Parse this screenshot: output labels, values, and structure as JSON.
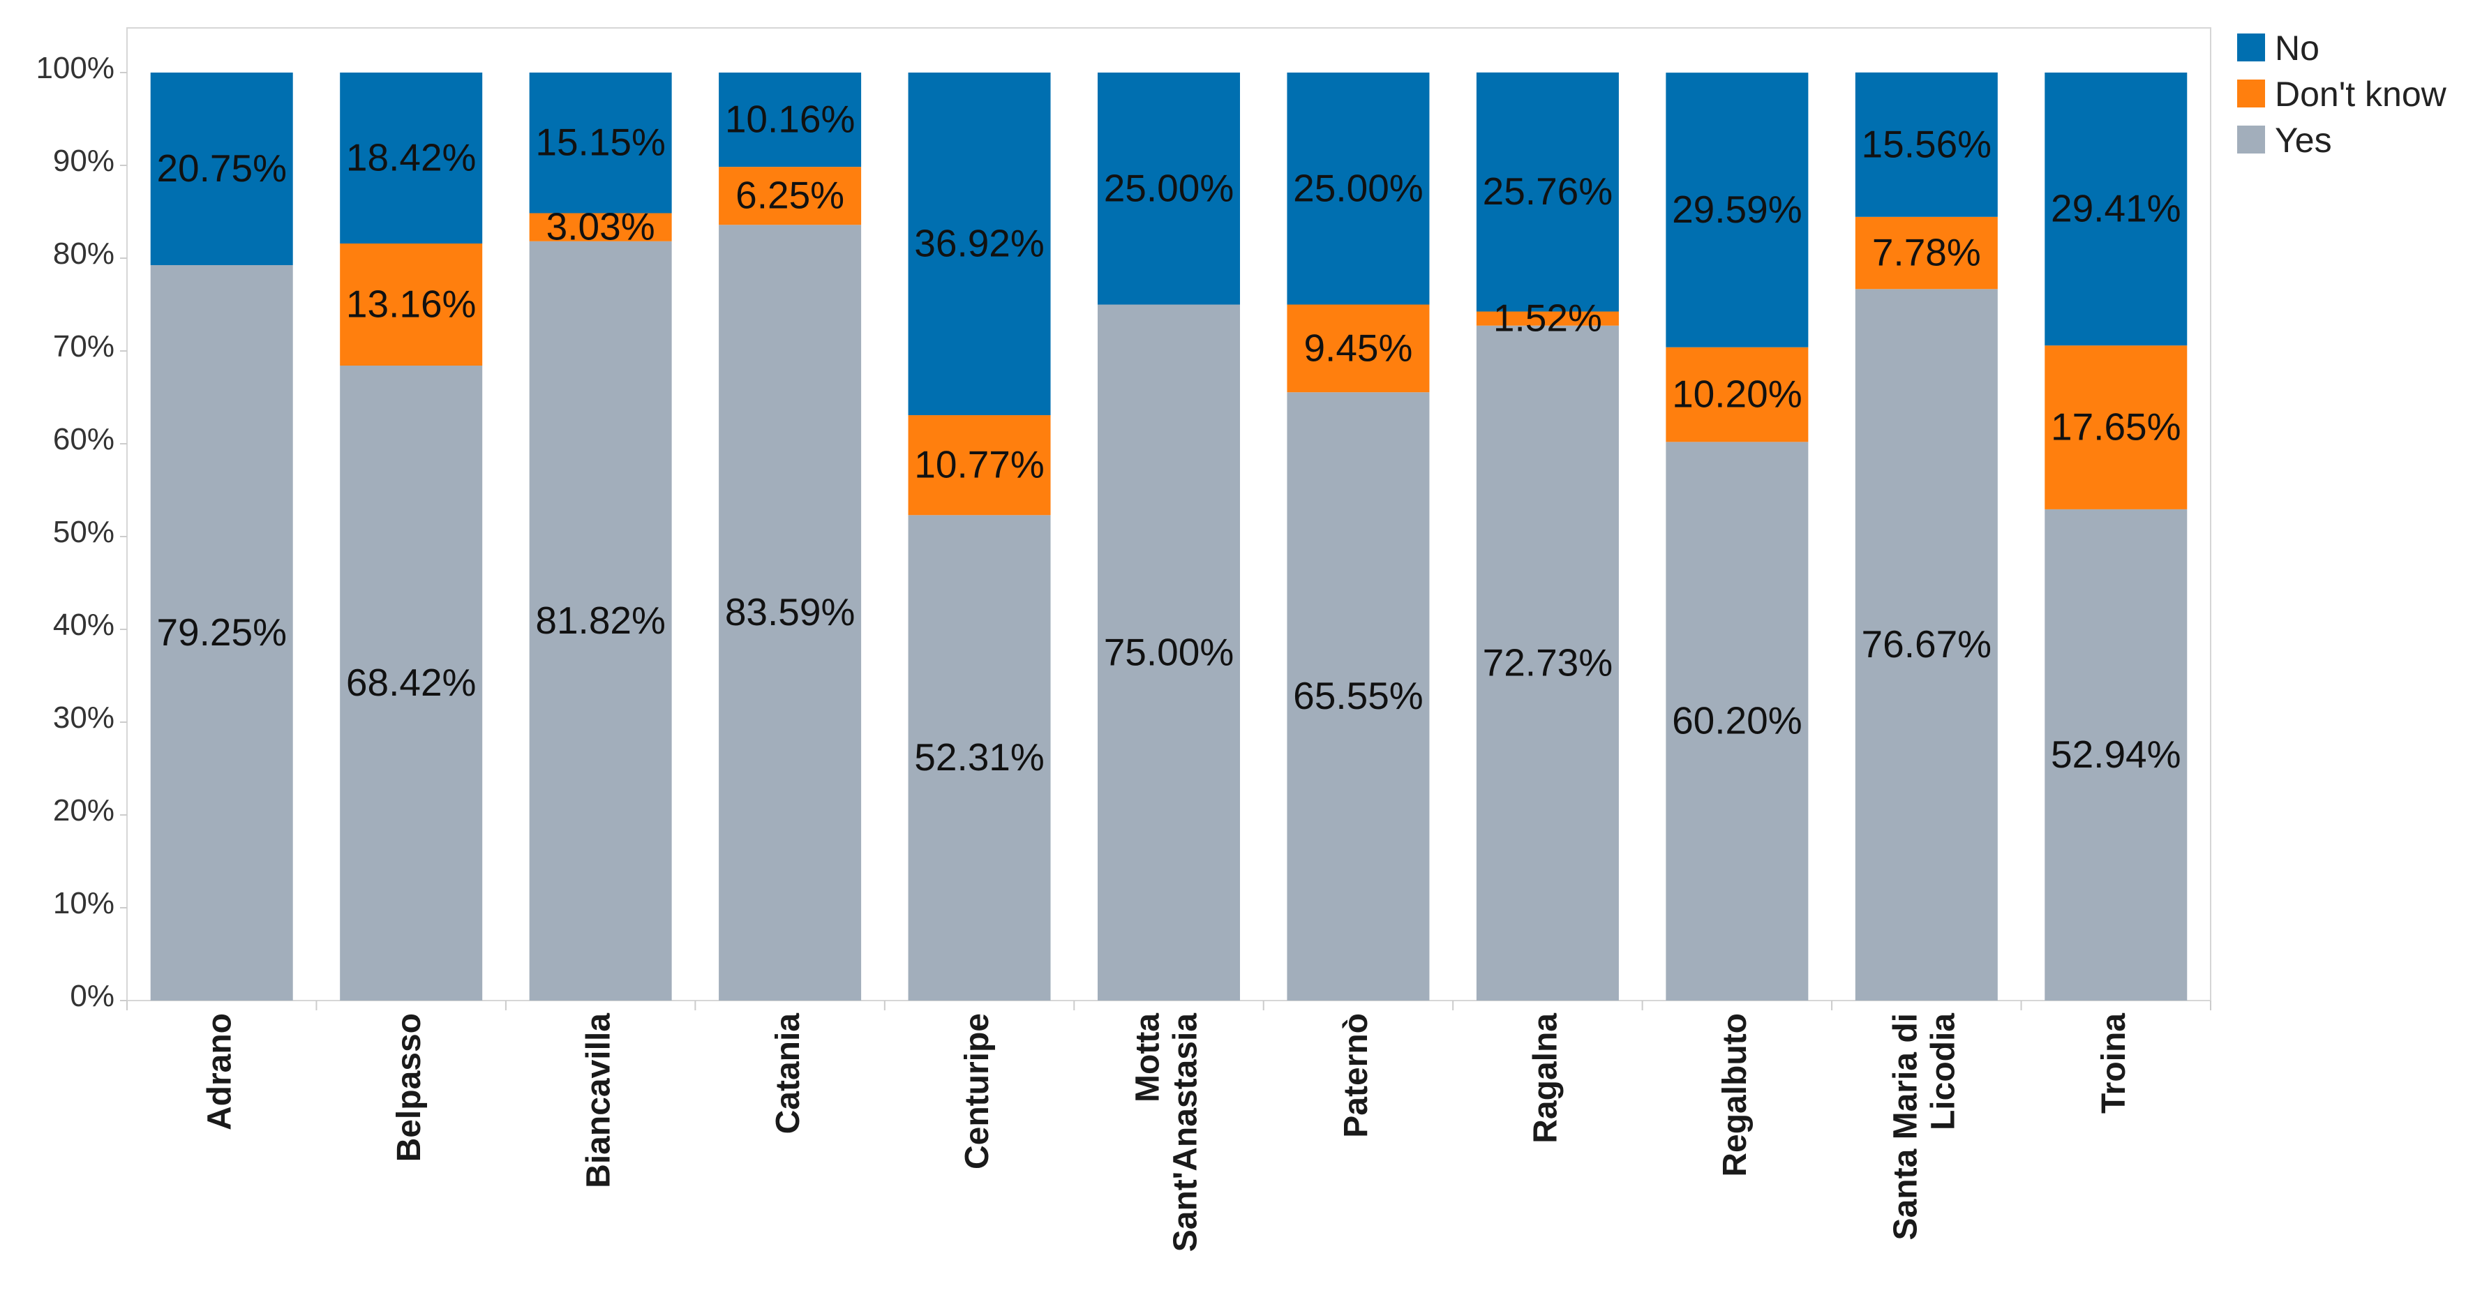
{
  "chart_data": {
    "type": "bar",
    "stacked": true,
    "categories": [
      [
        "Adrano"
      ],
      [
        "Belpasso"
      ],
      [
        "Biancavilla"
      ],
      [
        "Catania"
      ],
      [
        "Centuripe"
      ],
      [
        "Motta",
        "Sant'Anastasia"
      ],
      [
        "Paternò"
      ],
      [
        "Ragalna"
      ],
      [
        "Regalbuto"
      ],
      [
        "Santa Maria di",
        "Licodia"
      ],
      [
        "Troina"
      ]
    ],
    "series": [
      {
        "name": "Yes",
        "color": "#a2aebb",
        "values": [
          79.25,
          68.42,
          81.82,
          83.59,
          52.31,
          75.0,
          65.55,
          72.73,
          60.2,
          76.67,
          52.94
        ],
        "labels": [
          "79.25%",
          "68.42%",
          "81.82%",
          "83.59%",
          "52.31%",
          "75.00%",
          "65.55%",
          "72.73%",
          "60.20%",
          "76.67%",
          "52.94%"
        ]
      },
      {
        "name": "Don't know",
        "color": "#ff7f0e",
        "values": [
          0,
          13.16,
          3.03,
          6.25,
          10.77,
          0,
          9.45,
          1.52,
          10.2,
          7.78,
          17.65
        ],
        "labels": [
          "",
          "13.16%",
          "3.03%",
          "6.25%",
          "10.77%",
          "",
          "9.45%",
          "1.52%",
          "10.20%",
          "7.78%",
          "17.65%"
        ]
      },
      {
        "name": "No",
        "color": "#006fb0",
        "values": [
          20.75,
          18.42,
          15.15,
          10.16,
          36.92,
          25.0,
          25.0,
          25.76,
          29.59,
          15.56,
          29.41
        ],
        "labels": [
          "20.75%",
          "18.42%",
          "15.15%",
          "10.16%",
          "36.92%",
          "25.00%",
          "25.00%",
          "25.76%",
          "29.59%",
          "15.56%",
          "29.41%"
        ]
      }
    ],
    "y_ticks": [
      "0%",
      "10%",
      "20%",
      "30%",
      "40%",
      "50%",
      "60%",
      "70%",
      "80%",
      "90%",
      "100%"
    ],
    "ylim": [
      0,
      100
    ],
    "legend": {
      "position": "top-right",
      "order": [
        "No",
        "Don't know",
        "Yes"
      ]
    },
    "title": "",
    "xlabel": "",
    "ylabel": ""
  }
}
